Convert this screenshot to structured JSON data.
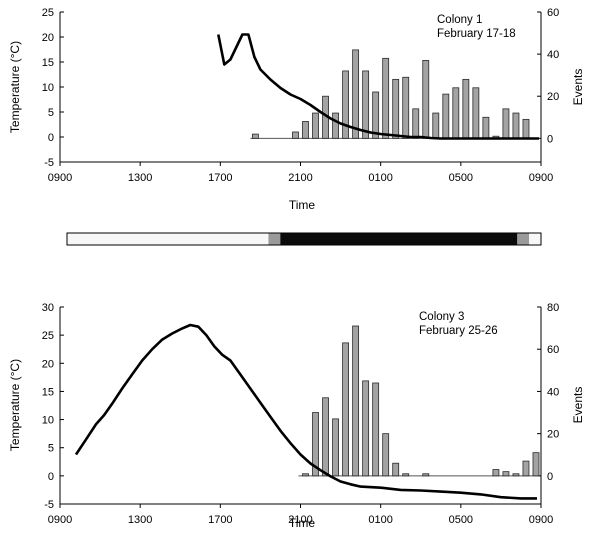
{
  "chart_data": [
    {
      "type": "bar",
      "panel": "top",
      "annotation": [
        "Colony 1",
        "February 17-18"
      ],
      "xlabel": "Time",
      "ylabel": "Temperature (°C)",
      "y2label": "Events",
      "x_ticks": [
        "0900",
        "1300",
        "1700",
        "2100",
        "0100",
        "0500",
        "0900"
      ],
      "x_range_hours": [
        9,
        33
      ],
      "ylim": [
        -5,
        25
      ],
      "y_ticks": [
        -5,
        0,
        5,
        10,
        15,
        20,
        25
      ],
      "y2lim": [
        -11.25,
        60
      ],
      "y2_ticks": [
        0,
        20,
        40,
        60
      ],
      "grid": false,
      "series": [
        {
          "role": "temperature-line",
          "axis": "left",
          "points": [
            [
              16.9,
              20.5
            ],
            [
              17.2,
              14.5
            ],
            [
              17.5,
              15.5
            ],
            [
              17.8,
              18.0
            ],
            [
              18.1,
              20.5
            ],
            [
              18.4,
              20.5
            ],
            [
              18.7,
              16.0
            ],
            [
              19.0,
              13.5
            ],
            [
              19.5,
              11.5
            ],
            [
              20.0,
              9.8
            ],
            [
              20.5,
              8.5
            ],
            [
              21.0,
              7.6
            ],
            [
              21.5,
              6.4
            ],
            [
              22.0,
              5.0
            ],
            [
              22.5,
              3.7
            ],
            [
              23.0,
              2.7
            ],
            [
              23.5,
              2.0
            ],
            [
              24.0,
              1.4
            ],
            [
              24.5,
              0.9
            ],
            [
              25.0,
              0.6
            ],
            [
              25.5,
              0.4
            ],
            [
              26.0,
              0.2
            ],
            [
              26.5,
              0.0
            ],
            [
              27.0,
              0.0
            ],
            [
              27.5,
              -0.2
            ],
            [
              28.0,
              -0.3
            ],
            [
              29.0,
              -0.3
            ],
            [
              30.0,
              -0.3
            ],
            [
              31.0,
              -0.3
            ],
            [
              32.0,
              -0.3
            ],
            [
              32.9,
              -0.3
            ]
          ]
        },
        {
          "role": "event-bars",
          "axis": "right",
          "x_hours": [
            18.75,
            20.75,
            21.25,
            21.75,
            22.25,
            22.75,
            23.25,
            23.75,
            24.25,
            24.75,
            25.25,
            25.75,
            26.25,
            26.75,
            27.25,
            27.75,
            28.25,
            28.75,
            29.25,
            29.75,
            30.25,
            30.75,
            31.25,
            31.75,
            32.25
          ],
          "values": [
            2,
            3,
            8,
            12,
            20,
            12,
            32,
            42,
            32,
            22,
            38,
            28,
            29,
            14,
            37,
            12,
            21,
            24,
            28,
            24,
            10,
            1,
            14,
            12,
            9
          ]
        }
      ],
      "bar_baseline_hours": [
        18.5,
        32.4
      ]
    },
    {
      "type": "bar",
      "panel": "photoperiod",
      "segments": [
        "light",
        "dusk",
        "dark",
        "dawn",
        "light"
      ],
      "segment_bounds_hours": [
        9,
        19.2,
        19.8,
        31.8,
        32.4,
        33
      ]
    },
    {
      "type": "bar",
      "panel": "bottom",
      "annotation": [
        "Colony 3",
        "February 25-26"
      ],
      "xlabel": "Time",
      "ylabel": "Temperature (°C)",
      "y2label": "Events",
      "x_ticks": [
        "0900",
        "1300",
        "1700",
        "2100",
        "0100",
        "0500",
        "0900"
      ],
      "x_range_hours": [
        9,
        33
      ],
      "ylim": [
        -5,
        30
      ],
      "y_ticks": [
        -5,
        0,
        5,
        10,
        15,
        20,
        25,
        30
      ],
      "y2lim": [
        -13.33,
        80
      ],
      "y2_ticks": [
        0,
        20,
        40,
        60,
        80
      ],
      "grid": false,
      "series": [
        {
          "role": "temperature-line",
          "axis": "left",
          "points": [
            [
              9.8,
              3.8
            ],
            [
              10.3,
              6.5
            ],
            [
              10.8,
              9.2
            ],
            [
              11.2,
              10.8
            ],
            [
              11.6,
              12.8
            ],
            [
              12.1,
              15.5
            ],
            [
              12.6,
              18.0
            ],
            [
              13.1,
              20.5
            ],
            [
              13.6,
              22.5
            ],
            [
              14.1,
              24.2
            ],
            [
              14.6,
              25.3
            ],
            [
              15.1,
              26.2
            ],
            [
              15.5,
              26.8
            ],
            [
              15.9,
              26.5
            ],
            [
              16.3,
              25.0
            ],
            [
              16.7,
              23.0
            ],
            [
              17.1,
              21.5
            ],
            [
              17.5,
              20.5
            ],
            [
              18.0,
              18.0
            ],
            [
              18.5,
              15.5
            ],
            [
              19.0,
              13.0
            ],
            [
              19.5,
              10.5
            ],
            [
              20.0,
              8.0
            ],
            [
              20.5,
              5.8
            ],
            [
              21.0,
              3.8
            ],
            [
              21.5,
              2.2
            ],
            [
              22.0,
              1.0
            ],
            [
              22.5,
              -0.1
            ],
            [
              23.0,
              -1.0
            ],
            [
              23.5,
              -1.5
            ],
            [
              24.0,
              -1.9
            ],
            [
              25.0,
              -2.1
            ],
            [
              26.0,
              -2.5
            ],
            [
              27.0,
              -2.6
            ],
            [
              28.0,
              -2.8
            ],
            [
              29.0,
              -3.0
            ],
            [
              30.0,
              -3.3
            ],
            [
              31.0,
              -3.8
            ],
            [
              32.0,
              -4.0
            ],
            [
              32.8,
              -4.0
            ]
          ]
        },
        {
          "role": "event-bars",
          "axis": "right",
          "x_hours": [
            21.25,
            21.75,
            22.25,
            22.75,
            23.25,
            23.75,
            24.25,
            24.75,
            25.25,
            25.75,
            26.25,
            27.25,
            30.75,
            31.25,
            31.75,
            32.25,
            32.75
          ],
          "values": [
            1,
            30,
            37,
            27,
            63,
            71,
            45,
            44,
            20,
            6,
            1,
            1,
            3,
            2,
            1,
            7,
            11
          ]
        }
      ],
      "bar_baseline_hours": [
        20.9,
        32.9
      ]
    }
  ]
}
